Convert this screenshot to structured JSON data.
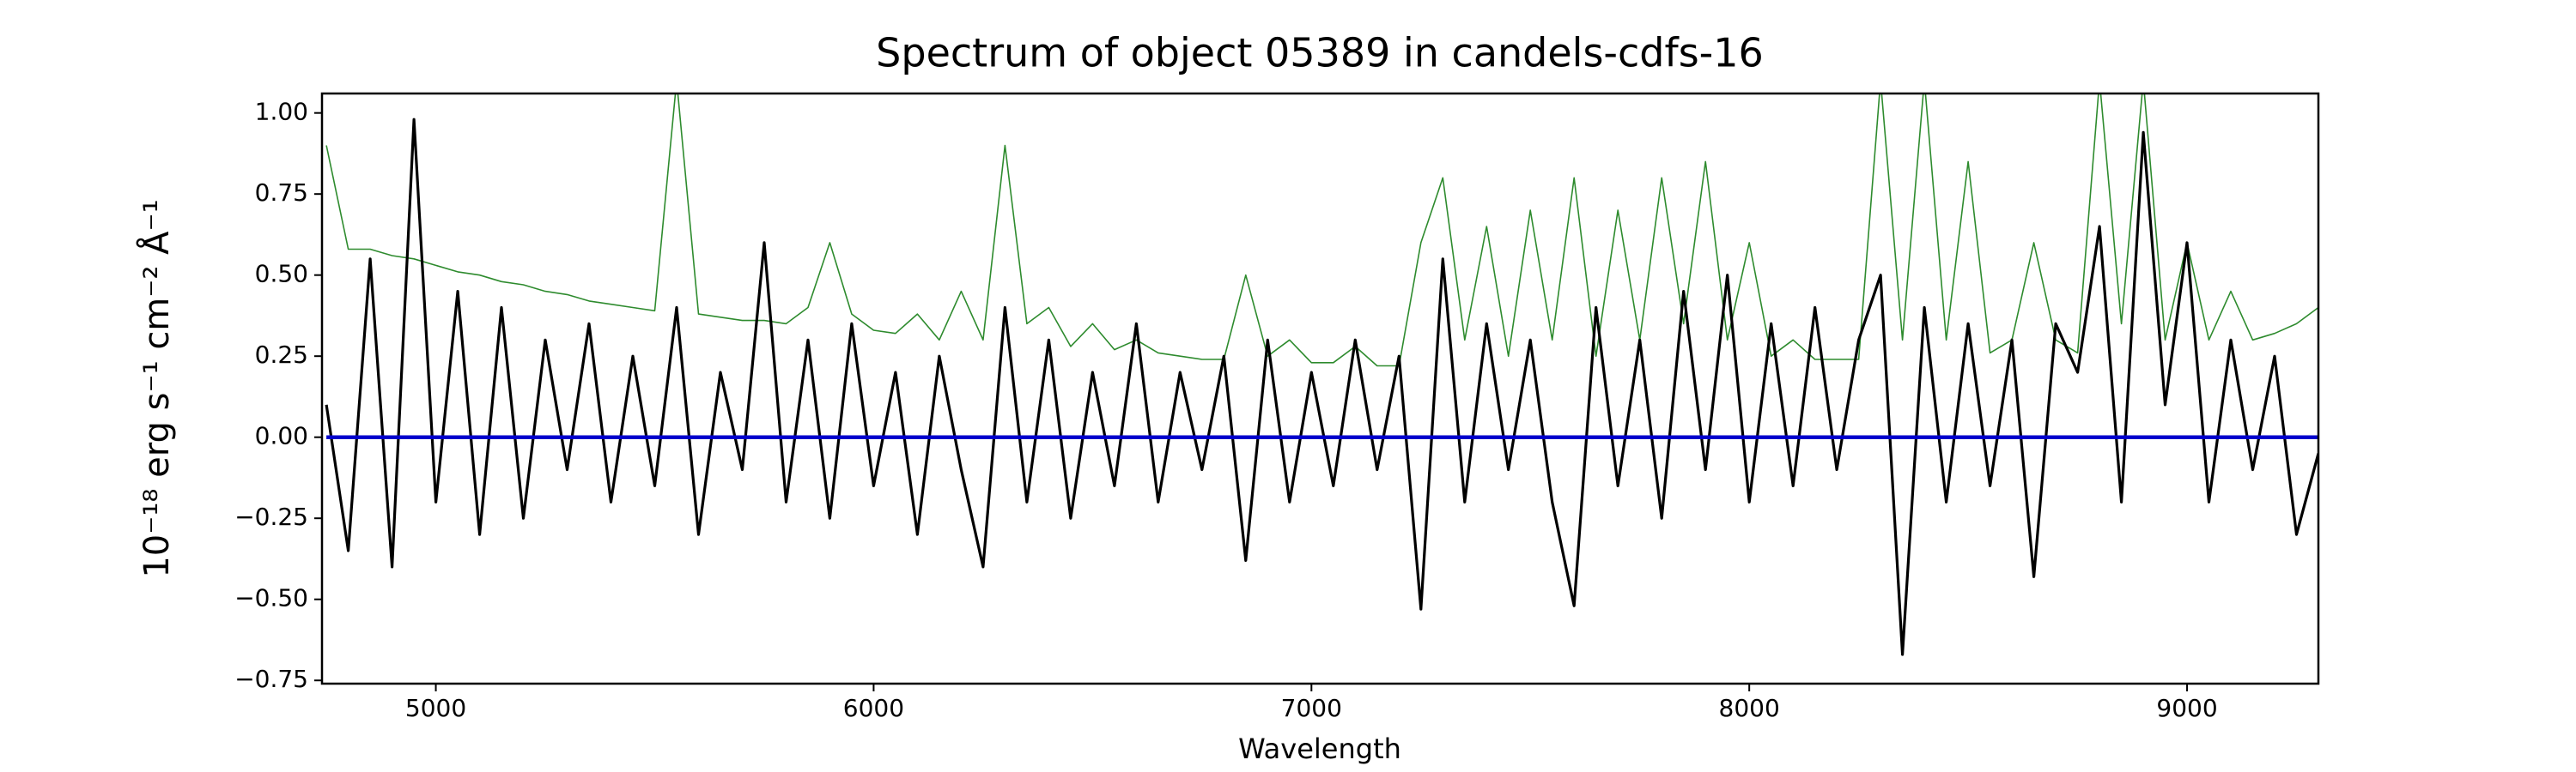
{
  "chart_data": {
    "type": "line",
    "title": "Spectrum of object 05389 in candels-cdfs-16",
    "x_label": "Wavelength",
    "y_label": "10⁻¹⁸ erg s⁻¹ cm⁻² Å⁻¹",
    "x": [
      4750,
      4800,
      4850,
      4900,
      4950,
      5000,
      5050,
      5100,
      5150,
      5200,
      5250,
      5300,
      5350,
      5400,
      5450,
      5500,
      5550,
      5600,
      5650,
      5700,
      5750,
      5800,
      5850,
      5900,
      5950,
      6000,
      6050,
      6100,
      6150,
      6200,
      6250,
      6300,
      6350,
      6400,
      6450,
      6500,
      6550,
      6600,
      6650,
      6700,
      6750,
      6800,
      6850,
      6900,
      6950,
      7000,
      7050,
      7100,
      7150,
      7200,
      7250,
      7300,
      7350,
      7400,
      7450,
      7500,
      7550,
      7600,
      7650,
      7700,
      7750,
      7800,
      7850,
      7900,
      7950,
      8000,
      8050,
      8100,
      8150,
      8200,
      8250,
      8300,
      8350,
      8400,
      8450,
      8500,
      8550,
      8600,
      8650,
      8700,
      8750,
      8800,
      8850,
      8900,
      8950,
      9000,
      9050,
      9100,
      9150,
      9200,
      9250,
      9300
    ],
    "series": [
      {
        "color": "#2e8b2e",
        "values": [
          0.9,
          0.58,
          0.58,
          0.56,
          0.55,
          0.53,
          0.51,
          0.5,
          0.48,
          0.47,
          0.45,
          0.44,
          0.42,
          0.41,
          0.4,
          0.39,
          1.1,
          0.38,
          0.37,
          0.36,
          0.36,
          0.35,
          0.4,
          0.6,
          0.38,
          0.33,
          0.32,
          0.38,
          0.3,
          0.45,
          0.3,
          0.9,
          0.35,
          0.4,
          0.28,
          0.35,
          0.27,
          0.3,
          0.26,
          0.25,
          0.24,
          0.24,
          0.5,
          0.25,
          0.3,
          0.23,
          0.23,
          0.28,
          0.22,
          0.22,
          0.6,
          0.8,
          0.3,
          0.65,
          0.25,
          0.7,
          0.3,
          0.8,
          0.25,
          0.7,
          0.3,
          0.8,
          0.35,
          0.85,
          0.3,
          0.6,
          0.25,
          0.3,
          0.24,
          0.24,
          0.24,
          1.1,
          0.3,
          1.1,
          0.3,
          0.85,
          0.26,
          0.3,
          0.6,
          0.3,
          0.26,
          1.1,
          0.35,
          1.1,
          0.3,
          0.6,
          0.3,
          0.45,
          0.3,
          0.32,
          0.35,
          0.4
        ]
      },
      {
        "color": "#000000",
        "values": [
          0.1,
          -0.35,
          0.55,
          -0.4,
          0.98,
          -0.2,
          0.45,
          -0.3,
          0.4,
          -0.25,
          0.3,
          -0.1,
          0.35,
          -0.2,
          0.25,
          -0.15,
          0.4,
          -0.3,
          0.2,
          -0.1,
          0.6,
          -0.2,
          0.3,
          -0.25,
          0.35,
          -0.15,
          0.2,
          -0.3,
          0.25,
          -0.1,
          -0.4,
          0.4,
          -0.2,
          0.3,
          -0.25,
          0.2,
          -0.15,
          0.35,
          -0.2,
          0.2,
          -0.1,
          0.25,
          -0.38,
          0.3,
          -0.2,
          0.2,
          -0.15,
          0.3,
          -0.1,
          0.25,
          -0.53,
          0.55,
          -0.2,
          0.35,
          -0.1,
          0.3,
          -0.2,
          -0.52,
          0.4,
          -0.15,
          0.3,
          -0.25,
          0.45,
          -0.1,
          0.5,
          -0.2,
          0.35,
          -0.15,
          0.4,
          -0.1,
          0.3,
          0.5,
          -0.67,
          0.4,
          -0.2,
          0.35,
          -0.15,
          0.3,
          -0.43,
          0.35,
          0.2,
          0.65,
          -0.2,
          0.94,
          0.1,
          0.6,
          -0.2,
          0.3,
          -0.1,
          0.25,
          -0.3,
          -0.05
        ]
      },
      {
        "color": "#0000cc",
        "values": [
          0,
          0,
          0,
          0,
          0,
          0,
          0,
          0,
          0,
          0,
          0,
          0,
          0,
          0,
          0,
          0,
          0,
          0,
          0,
          0,
          0,
          0,
          0,
          0,
          0,
          0,
          0,
          0,
          0,
          0,
          0,
          0,
          0,
          0,
          0,
          0,
          0,
          0,
          0,
          0,
          0,
          0,
          0,
          0,
          0,
          0,
          0,
          0,
          0,
          0,
          0,
          0,
          0,
          0,
          0,
          0,
          0,
          0,
          0,
          0,
          0,
          0,
          0,
          0,
          0,
          0,
          0,
          0,
          0,
          0,
          0,
          0,
          0,
          0,
          0,
          0,
          0,
          0,
          0,
          0,
          0,
          0,
          0,
          0,
          0,
          0,
          0,
          0,
          0,
          0,
          0,
          0
        ]
      }
    ],
    "xlim": [
      4740,
      9300
    ],
    "ylim": [
      -0.76,
      1.06
    ],
    "xticks": [
      5000,
      6000,
      7000,
      8000,
      9000
    ],
    "yticks": [
      {
        "value": -0.75,
        "label": "−0.75"
      },
      {
        "value": -0.5,
        "label": "−0.50"
      },
      {
        "value": -0.25,
        "label": "−0.25"
      },
      {
        "value": 0,
        "label": "0.00"
      },
      {
        "value": 0.25,
        "label": "0.25"
      },
      {
        "value": 0.5,
        "label": "0.50"
      },
      {
        "value": 0.75,
        "label": "0.75"
      },
      {
        "value": 1,
        "label": "1.00"
      }
    ]
  }
}
